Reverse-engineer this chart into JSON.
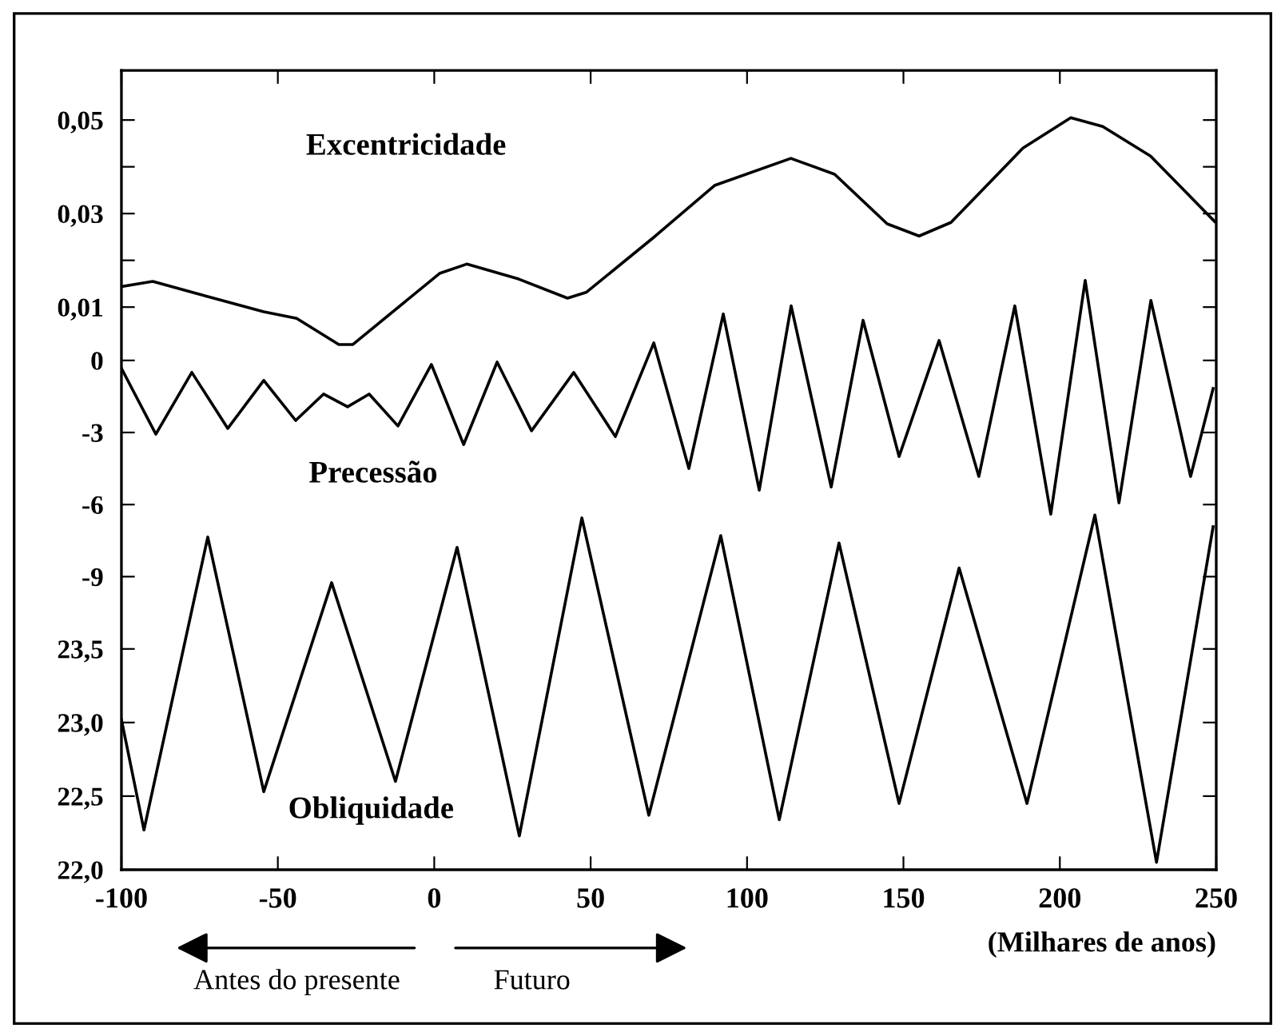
{
  "chart_data": [
    {
      "type": "line",
      "xlim": [
        -100,
        250
      ],
      "xticks": [
        -100,
        -50,
        0,
        50,
        100,
        150,
        200,
        250
      ],
      "ylim": [
        -0.1103,
        0.0606
      ],
      "yticks": [
        {
          "value": 0.01,
          "label": "0,01"
        },
        {
          "value": 0.02,
          "label": null
        },
        {
          "value": 0.03,
          "label": "0,03"
        },
        {
          "value": 0.04,
          "label": null
        },
        {
          "value": 0.05,
          "label": "0,05"
        }
      ],
      "tick_labels": "y",
      "grid": false,
      "legend": false,
      "series": [
        {
          "name": "Excentricidade",
          "color": "#000000",
          "x": [
            -100,
            -90,
            -77.5,
            -54.5,
            -44,
            -30.5,
            -26,
            1.7,
            10.4,
            27,
            42.6,
            48.7,
            70.7,
            89.6,
            114,
            128,
            144.8,
            155,
            165.2,
            188.2,
            203.5,
            213.7,
            229,
            249.5
          ],
          "values": [
            0.0144,
            0.0155,
            0.0132,
            0.009,
            0.0076,
            0.002,
            0.002,
            0.0172,
            0.0192,
            0.016,
            0.0119,
            0.0132,
            0.0252,
            0.036,
            0.0418,
            0.0384,
            0.0278,
            0.0252,
            0.0281,
            0.044,
            0.0505,
            0.0486,
            0.0423,
            0.0283
          ]
        }
      ]
    },
    {
      "type": "line",
      "xlim": [
        -100,
        250
      ],
      "xticks": [
        -100,
        -50,
        0,
        50,
        100,
        150,
        200,
        250
      ],
      "ylim": [
        -21.2,
        12.07
      ],
      "yticks": [
        {
          "value": 0,
          "label": "0"
        },
        {
          "value": -3,
          "label": "-3"
        },
        {
          "value": -6,
          "label": "-6"
        },
        {
          "value": -9,
          "label": "-9"
        }
      ],
      "tick_labels": "y",
      "grid": false,
      "legend": false,
      "series": [
        {
          "name": "Precessão",
          "color": "#000000",
          "x": [
            -100,
            -89,
            -77.5,
            -66,
            -54.5,
            -44.3,
            -35.4,
            -27.7,
            -20.8,
            -11.6,
            -0.9,
            9.4,
            20.1,
            31.1,
            44.6,
            57.9,
            70.2,
            81.4,
            92.4,
            103.9,
            114.1,
            126.9,
            137.1,
            148.6,
            161.4,
            174.1,
            185.6,
            197.1,
            208.1,
            218.9,
            229.1,
            241.8,
            249
          ],
          "values": [
            -0.33,
            -3.07,
            -0.5,
            -2.83,
            -0.83,
            -2.5,
            -1.4,
            -1.93,
            -1.4,
            -2.73,
            -0.17,
            -3.5,
            -0.07,
            -2.93,
            -0.5,
            -3.17,
            0.73,
            -4.5,
            1.93,
            -5.4,
            2.27,
            -5.27,
            1.67,
            -4.0,
            0.83,
            -4.83,
            2.27,
            -6.4,
            3.33,
            -5.93,
            2.5,
            -4.83,
            -1.17
          ]
        }
      ]
    },
    {
      "type": "line",
      "xlim": [
        -100,
        250
      ],
      "xticks": [
        -100,
        -50,
        0,
        50,
        100,
        150,
        200,
        250
      ],
      "ylim": [
        22.0,
        27.43
      ],
      "yticks": [
        {
          "value": 22.0,
          "label": "22,0"
        },
        {
          "value": 22.5,
          "label": "22,5"
        },
        {
          "value": 23.0,
          "label": "23,0"
        },
        {
          "value": 23.5,
          "label": "23,5"
        }
      ],
      "xlabel": "(Milhares de anos)",
      "grid": false,
      "legend": false,
      "annotations": [
        "Antes do presente",
        "Futuro"
      ],
      "series": [
        {
          "name": "Obliquidade",
          "color": "#000000",
          "x": [
            -100,
            -92.8,
            -72.4,
            -54.5,
            -32.8,
            -12.4,
            7.3,
            27.2,
            47.2,
            68.6,
            91.6,
            110.3,
            129.4,
            148.6,
            167.8,
            189.5,
            211.2,
            230.9,
            249
          ],
          "values": [
            23.02,
            22.27,
            24.26,
            22.53,
            23.95,
            22.6,
            24.19,
            22.23,
            24.39,
            22.37,
            24.27,
            22.34,
            24.22,
            22.45,
            24.05,
            22.45,
            24.41,
            22.05,
            24.33
          ]
        }
      ]
    }
  ]
}
